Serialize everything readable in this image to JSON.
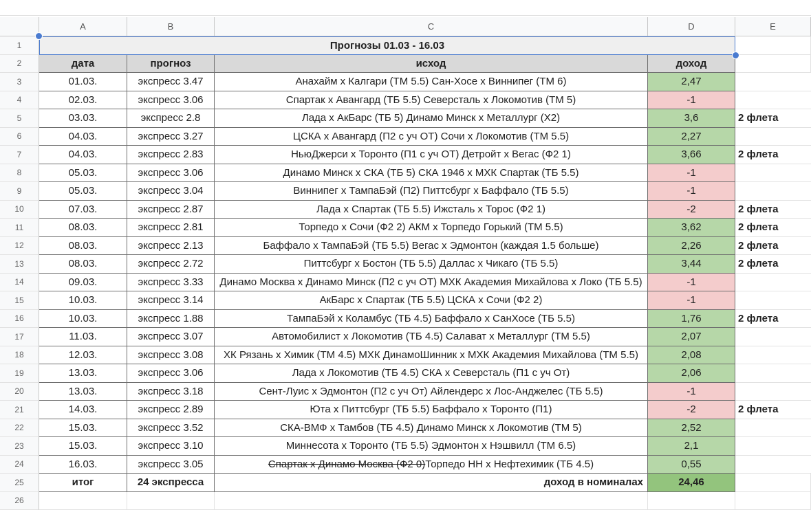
{
  "columns": [
    "A",
    "B",
    "C",
    "D",
    "E"
  ],
  "title": "Прогнозы 01.03 - 16.03",
  "headers": {
    "date": "дата",
    "forecast": "прогноз",
    "outcome": "исход",
    "income": "доход"
  },
  "rows": [
    {
      "n": "3",
      "date": "01.03.",
      "forecast": "экспресс 3.47",
      "outcome": "Анахайм x Калгари (ТМ 5.5) Сан-Хосе x Виннипег (ТМ 6)",
      "income": "2,47",
      "status": "win",
      "note": ""
    },
    {
      "n": "4",
      "date": "02.03.",
      "forecast": "экспресс 3.06",
      "outcome": "Спартак x Авангард (ТБ 5.5) Северсталь x Локомотив (ТМ 5)",
      "income": "-1",
      "status": "loss",
      "note": ""
    },
    {
      "n": "5",
      "date": "03.03.",
      "forecast": "экспресс 2.8",
      "outcome": "Лада x АкБарс (ТБ 5) Динамо Минск x Металлург (Х2)",
      "income": "3,6",
      "status": "win",
      "note": "2 флета"
    },
    {
      "n": "6",
      "date": "04.03.",
      "forecast": "экспресс 3.27",
      "outcome": "ЦСКА x Авангард (П2 с уч ОТ) Сочи x Локомотив (ТМ 5.5)",
      "income": "2,27",
      "status": "win",
      "note": ""
    },
    {
      "n": "7",
      "date": "04.03.",
      "forecast": "экспресс 2.83",
      "outcome": "НьюДжерси x Торонто (П1 с уч ОТ) Детройт x Вегас (Ф2 1)",
      "income": "3,66",
      "status": "win",
      "note": "2 флета"
    },
    {
      "n": "8",
      "date": "05.03.",
      "forecast": "экспресс 3.06",
      "outcome": "Динамо Минск x СКА (ТБ 5) СКА 1946 x МХК Спартак (ТБ 5.5)",
      "income": "-1",
      "status": "loss",
      "note": ""
    },
    {
      "n": "9",
      "date": "05.03.",
      "forecast": "экспресс 3.04",
      "outcome": "Виннипег x ТампаБэй (П2) Питтсбург x Баффало (ТБ 5.5)",
      "income": "-1",
      "status": "loss",
      "note": ""
    },
    {
      "n": "10",
      "date": "07.03.",
      "forecast": "экспресс 2.87",
      "outcome": "Лада x Спартак (ТБ 5.5) Ижсталь x Торос (Ф2 1)",
      "income": "-2",
      "status": "loss",
      "note": "2 флета"
    },
    {
      "n": "11",
      "date": "08.03.",
      "forecast": "экспресс 2.81",
      "outcome": "Торпедо x Сочи (Ф2 2) АКМ x Торпедо Горький (ТМ 5.5)",
      "income": "3,62",
      "status": "win",
      "note": "2 флета"
    },
    {
      "n": "12",
      "date": "08.03.",
      "forecast": "экспресс 2.13",
      "outcome": "Баффало x ТампаБэй (ТБ 5.5) Вегас x Эдмонтон (каждая 1.5 больше)",
      "income": "2,26",
      "status": "win",
      "note": "2 флета"
    },
    {
      "n": "13",
      "date": "08.03.",
      "forecast": "экспресс 2.72",
      "outcome": "Питтсбург x Бостон (ТБ 5.5) Даллас x Чикаго (ТБ 5.5)",
      "income": "3,44",
      "status": "win",
      "note": "2 флета"
    },
    {
      "n": "14",
      "date": "09.03.",
      "forecast": "экспресс 3.33",
      "outcome": "Динамо Москва x Динамо Минск (П2 с уч ОТ) МХК Академия Михайлова x Локо (ТБ 5.5)",
      "income": "-1",
      "status": "loss",
      "note": ""
    },
    {
      "n": "15",
      "date": "10.03.",
      "forecast": "экспресс 3.14",
      "outcome": "АкБарс x Спартак (ТБ 5.5) ЦСКА x Сочи (Ф2 2)",
      "income": "-1",
      "status": "loss",
      "note": ""
    },
    {
      "n": "16",
      "date": "10.03.",
      "forecast": "экспресс 1.88",
      "outcome": "ТампаБэй x Коламбус (ТБ 4.5) Баффало x СанХосе (ТБ 5.5)",
      "income": "1,76",
      "status": "win",
      "note": "2 флета"
    },
    {
      "n": "17",
      "date": "11.03.",
      "forecast": "экспресс 3.07",
      "outcome": "Автомобилист x Локомотив (ТБ 4.5) Салават x Металлург (ТМ 5.5)",
      "income": "2,07",
      "status": "win",
      "note": ""
    },
    {
      "n": "18",
      "date": "12.03.",
      "forecast": "экспресс 3.08",
      "outcome": "ХК Рязань x Химик (ТМ 4.5) МХК ДинамоШинник x МХК Академия Михайлова (ТМ 5.5)",
      "income": "2,08",
      "status": "win",
      "note": ""
    },
    {
      "n": "19",
      "date": "13.03.",
      "forecast": "экспресс 3.06",
      "outcome": "Лада x Локомотив (ТБ 4.5) СКА x Северсталь (П1 с уч От)",
      "income": "2,06",
      "status": "win",
      "note": ""
    },
    {
      "n": "20",
      "date": "13.03.",
      "forecast": "экспресс 3.18",
      "outcome": "Сент-Луис x Эдмонтон (П2 с уч От) Айлендерс x Лос-Анджелес (ТБ 5.5)",
      "income": "-1",
      "status": "loss",
      "note": ""
    },
    {
      "n": "21",
      "date": "14.03.",
      "forecast": "экспресс 2.89",
      "outcome": "Юта x Питтсбург (ТБ 5.5) Баффало x Торонто (П1)",
      "income": "-2",
      "status": "loss",
      "note": "2 флета"
    },
    {
      "n": "22",
      "date": "15.03.",
      "forecast": "экспресс 3.52",
      "outcome": "СКА-ВМФ x Тамбов (ТБ 4.5) Динамо Минск x Локомотив (ТМ 5)",
      "income": "2,52",
      "status": "win",
      "note": ""
    },
    {
      "n": "23",
      "date": "15.03.",
      "forecast": "экспресс 3.10",
      "outcome": "Миннесота x Торонто (ТБ 5.5) Эдмонтон x Нэшвилл (ТМ 6.5)",
      "income": "2,1",
      "status": "win",
      "note": ""
    },
    {
      "n": "24",
      "date": "16.03.",
      "forecast": "экспресс 3.05",
      "outcome_struck": "Спартак x Динамо Москва (Ф2 0)",
      "outcome": "Торпедо НН x Нефтехимик (ТБ 4.5)",
      "income": "0,55",
      "status": "win",
      "note": ""
    }
  ],
  "total": {
    "label": "итог",
    "count": "24 экспресса",
    "income_label": "доход в номиналах",
    "income": "24,46"
  },
  "colors": {
    "win": "#b6d7a8",
    "loss": "#f4cccc",
    "total": "#93c47d",
    "selection": "#4a7bd0"
  }
}
